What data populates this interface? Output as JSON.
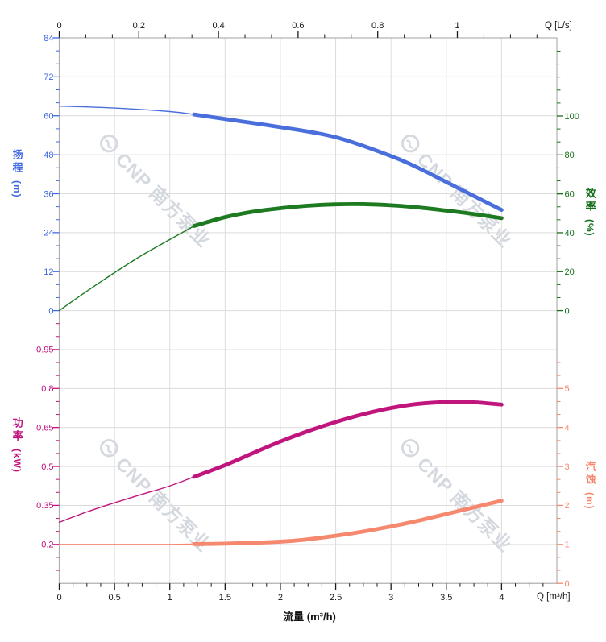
{
  "page": {
    "background": "#ffffff"
  },
  "watermark": {
    "text": "CNP 南方泵业",
    "color": "rgba(148,157,174,0.40)"
  },
  "chart_data": [
    {
      "type": "line",
      "id": "head-efficiency-chart",
      "x_axis": {
        "position": "top",
        "label": "Q [L/s]",
        "unit": "L/s",
        "range": [
          0,
          1.25
        ],
        "major_ticks": [
          0,
          0.2,
          0.4,
          0.6,
          0.8,
          1
        ],
        "tick_labels": [
          "0",
          "0.2",
          "0.4",
          "0.6",
          "0.8",
          "1"
        ],
        "minor_step": 0.0666667,
        "tick_color": "#1a1a1a"
      },
      "y_left": {
        "title": "扬程",
        "unit": "(m)",
        "color": "#4169e1",
        "range": [
          0,
          84
        ],
        "major_ticks": [
          84,
          72,
          60,
          48,
          36,
          24,
          12,
          0
        ],
        "tick_labels": [
          "84",
          "72",
          "60",
          "48",
          "36",
          "24",
          "12",
          "0"
        ],
        "minor_step": 4
      },
      "y_right": {
        "title": "效率",
        "unit": "(%)",
        "color": "#15701a",
        "range": [
          0,
          100
        ],
        "major_ticks": [
          100,
          80,
          60,
          40,
          20,
          0
        ],
        "tick_labels": [
          "100",
          "80",
          "60",
          "40",
          "20",
          "0"
        ],
        "minor_step": 6.6666667
      },
      "grid": true,
      "series": [
        {
          "name": "head",
          "label": "扬程",
          "axis": "left",
          "color": "#4a6fdc",
          "thin_until": 1.22,
          "points": [
            [
              0,
              63.0
            ],
            [
              0.5,
              62.4
            ],
            [
              1,
              61.3
            ],
            [
              1.22,
              60.4
            ],
            [
              1.5,
              59.0
            ],
            [
              2,
              56.5
            ],
            [
              2.5,
              53.4
            ],
            [
              3,
              47.6
            ],
            [
              3.25,
              43.9
            ],
            [
              3.5,
              39.6
            ],
            [
              3.75,
              35.3
            ],
            [
              4,
              31.0
            ]
          ]
        },
        {
          "name": "efficiency",
          "label": "效率",
          "axis": "right",
          "color": "#1d7a20",
          "thin_until": 1.22,
          "points": [
            [
              0,
              0
            ],
            [
              0.25,
              10
            ],
            [
              0.5,
              19.5
            ],
            [
              0.75,
              28.5
            ],
            [
              1,
              36.5
            ],
            [
              1.22,
              43.5
            ],
            [
              1.5,
              48.0
            ],
            [
              1.75,
              50.8
            ],
            [
              2,
              52.6
            ],
            [
              2.25,
              53.9
            ],
            [
              2.5,
              54.6
            ],
            [
              2.75,
              54.7
            ],
            [
              3,
              54.1
            ],
            [
              3.25,
              53.0
            ],
            [
              3.5,
              51.4
            ],
            [
              3.75,
              49.6
            ],
            [
              4,
              47.5
            ]
          ]
        }
      ]
    },
    {
      "type": "line",
      "id": "power-npsh-chart",
      "x_axis": {
        "position": "bottom",
        "label": "Q [m³/h]",
        "title": "流量 (m³/h)",
        "unit": "m³/h",
        "range": [
          0,
          4.5
        ],
        "major_ticks": [
          0,
          0.5,
          1,
          1.5,
          2,
          2.5,
          3,
          3.5,
          4
        ],
        "tick_labels": [
          "0",
          "0.5",
          "1",
          "1.5",
          "2",
          "2.5",
          "3",
          "3.5",
          "4"
        ],
        "minor_step": 0.125,
        "tick_color": "#1a1a1a"
      },
      "y_left": {
        "title": "功率",
        "unit": "(kW)",
        "color": "#c0137d",
        "range": [
          0.2,
          0.95
        ],
        "major_ticks": [
          0.95,
          0.8,
          0.65,
          0.5,
          0.35,
          0.2
        ],
        "tick_labels": [
          "0.95",
          "0.8",
          "0.65",
          "0.5",
          "0.35",
          "0.2"
        ],
        "minor_step": 0.05
      },
      "y_right": {
        "title": "汽蚀",
        "unit": "(m)",
        "color": "#f5886e",
        "range": [
          0,
          5
        ],
        "major_ticks": [
          5,
          4,
          3,
          2,
          1,
          0
        ],
        "tick_labels": [
          "5",
          "4",
          "3",
          "2",
          "1",
          "0"
        ],
        "minor_step": 0.3333333
      },
      "grid": true,
      "series": [
        {
          "name": "power",
          "label": "功率",
          "axis": "left",
          "color": "#c1157e",
          "thin_until": 1.22,
          "points": [
            [
              0,
              0.285
            ],
            [
              0.25,
              0.325
            ],
            [
              0.5,
              0.36
            ],
            [
              0.75,
              0.393
            ],
            [
              1,
              0.425
            ],
            [
              1.22,
              0.46
            ],
            [
              1.5,
              0.505
            ],
            [
              1.75,
              0.551
            ],
            [
              2,
              0.596
            ],
            [
              2.25,
              0.636
            ],
            [
              2.5,
              0.671
            ],
            [
              2.75,
              0.701
            ],
            [
              3,
              0.725
            ],
            [
              3.25,
              0.741
            ],
            [
              3.5,
              0.748
            ],
            [
              3.75,
              0.747
            ],
            [
              4,
              0.738
            ]
          ]
        },
        {
          "name": "npsh",
          "label": "汽蚀",
          "axis": "right",
          "color": "#f5886e",
          "thin_until": 1.22,
          "points": [
            [
              0,
              1.0
            ],
            [
              0.5,
              1.0
            ],
            [
              1,
              1.0
            ],
            [
              1.22,
              1.01
            ],
            [
              1.5,
              1.02
            ],
            [
              2,
              1.07
            ],
            [
              2.25,
              1.13
            ],
            [
              2.5,
              1.22
            ],
            [
              2.75,
              1.33
            ],
            [
              3,
              1.46
            ],
            [
              3.25,
              1.61
            ],
            [
              3.5,
              1.78
            ],
            [
              3.75,
              1.95
            ],
            [
              4,
              2.12
            ]
          ]
        }
      ]
    }
  ]
}
